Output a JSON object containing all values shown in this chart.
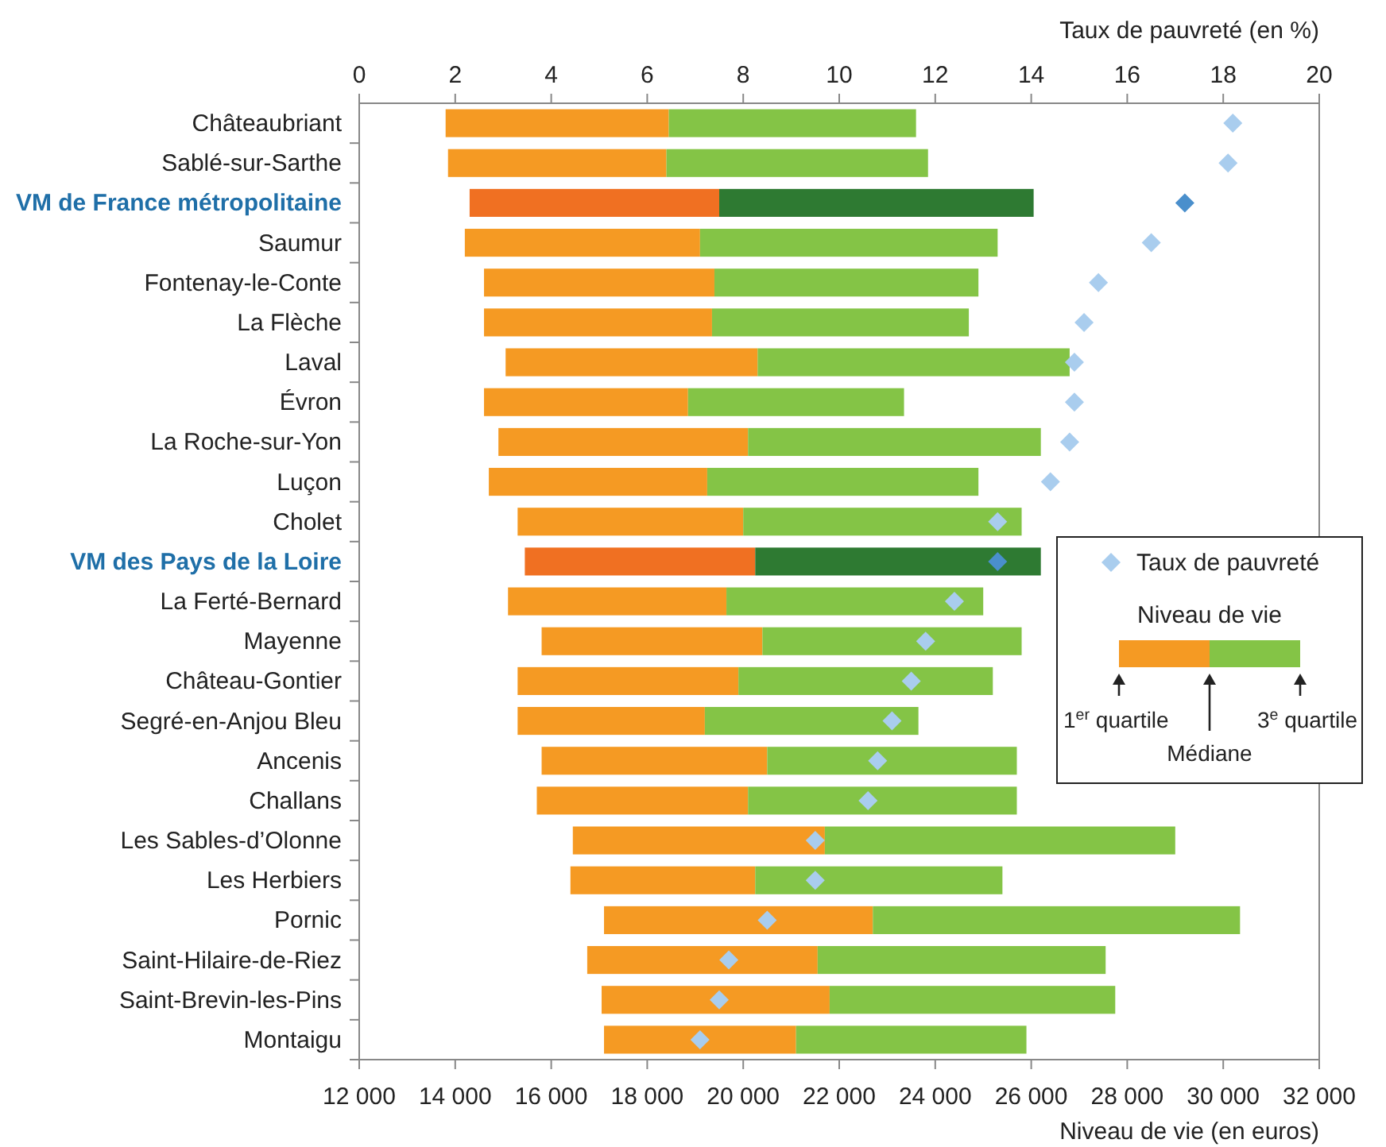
{
  "chart_data": {
    "type": "bar",
    "orientation": "horizontal",
    "categories": [
      "Châteaubriant",
      "Sablé-sur-Sarthe",
      "VM de France métropolitaine",
      "Saumur",
      "Fontenay-le-Conte",
      "La Flèche",
      "Laval",
      "Évron",
      "La Roche-sur-Yon",
      "Luçon",
      "Cholet",
      "VM des Pays de la Loire",
      "La Ferté-Bernard",
      "Mayenne",
      "Château-Gontier",
      "Segré-en-Anjou Bleu",
      "Ancenis",
      "Challans",
      "Les Sables-d’Olonne",
      "Les Herbiers",
      "Pornic",
      "Saint-Hilaire-de-Riez",
      "Saint-Brevin-les-Pins",
      "Montaigu"
    ],
    "series": [
      {
        "base": [
          13800,
          13850,
          14300,
          14200,
          14600,
          14600,
          15050,
          14600,
          14900,
          14700,
          15300,
          15450,
          15100,
          15800,
          15300,
          15300,
          15800,
          15700,
          16450,
          16400,
          17100,
          16750,
          17050,
          17100
        ],
        "color": "#f59a23",
        "colors": [
          "#f59a23",
          "#f59a23",
          "#f07022",
          "#f59a23",
          "#f59a23",
          "#f59a23",
          "#f59a23",
          "#f59a23",
          "#f59a23",
          "#f59a23",
          "#f59a23",
          "#f07022",
          "#f59a23",
          "#f59a23",
          "#f59a23",
          "#f59a23",
          "#f59a23",
          "#f59a23",
          "#f59a23",
          "#f59a23",
          "#f59a23",
          "#f59a23",
          "#f59a23",
          "#f59a23"
        ],
        "values": [
          4650,
          4550,
          5200,
          4900,
          4800,
          4750,
          5250,
          4250,
          5200,
          4550,
          4700,
          4800,
          4550,
          4600,
          4600,
          3900,
          4700,
          4400,
          5250,
          3850,
          5600,
          4800,
          4750,
          4000
        ]
      },
      {
        "base": [
          18450,
          18400,
          19500,
          19100,
          19400,
          19350,
          20300,
          18850,
          20100,
          19250,
          20000,
          20250,
          19650,
          20400,
          19900,
          19200,
          20500,
          20100,
          21700,
          20250,
          22700,
          21550,
          21800,
          21100
        ],
        "color": "#84c446",
        "colors": [
          "#84c446",
          "#84c446",
          "#2e7a32",
          "#84c446",
          "#84c446",
          "#84c446",
          "#84c446",
          "#84c446",
          "#84c446",
          "#84c446",
          "#84c446",
          "#2e7a32",
          "#84c446",
          "#84c446",
          "#84c446",
          "#84c446",
          "#84c446",
          "#84c446",
          "#84c446",
          "#84c446",
          "#84c446",
          "#84c446",
          "#84c446",
          "#84c446"
        ],
        "values": [
          5150,
          5450,
          6550,
          6200,
          5500,
          5350,
          6500,
          4500,
          6100,
          5650,
          5800,
          5950,
          5350,
          5400,
          5300,
          4450,
          5200,
          5600,
          7300,
          5150,
          7650,
          6000,
          5950,
          4800
        ]
      },
      {
        "type": "scatter",
        "name": "Taux de pauvreté",
        "axis": "x2",
        "marker": "diamond",
        "color": "#a9cdee",
        "colors": [
          "#a9cdee",
          "#a9cdee",
          "#4a8fcc",
          "#a9cdee",
          "#a9cdee",
          "#a9cdee",
          "#a9cdee",
          "#a9cdee",
          "#a9cdee",
          "#a9cdee",
          "#a9cdee",
          "#4a8fcc",
          "#a9cdee",
          "#a9cdee",
          "#a9cdee",
          "#a9cdee",
          "#a9cdee",
          "#a9cdee",
          "#a9cdee",
          "#a9cdee",
          "#a9cdee",
          "#a9cdee",
          "#a9cdee",
          "#a9cdee"
        ],
        "values": [
          18.2,
          18.1,
          17.2,
          16.5,
          15.4,
          15.1,
          14.9,
          14.9,
          14.8,
          14.4,
          13.3,
          13.3,
          12.4,
          11.8,
          11.5,
          11.1,
          10.8,
          10.6,
          9.5,
          9.5,
          8.5,
          7.7,
          7.5,
          7.1
        ]
      }
    ],
    "xlim": [
      12000,
      32000
    ],
    "xticks": [
      {
        "value": 12000,
        "label": "12 000"
      },
      {
        "value": 14000,
        "label": "14 000"
      },
      {
        "value": 16000,
        "label": "16 000"
      },
      {
        "value": 18000,
        "label": "18 000"
      },
      {
        "value": 20000,
        "label": "20 000"
      },
      {
        "value": 22000,
        "label": "22 000"
      },
      {
        "value": 24000,
        "label": "24 000"
      },
      {
        "value": 26000,
        "label": "26 000"
      },
      {
        "value": 28000,
        "label": "28 000"
      },
      {
        "value": 30000,
        "label": "30 000"
      },
      {
        "value": 32000,
        "label": "32 000"
      }
    ],
    "xlabel": "Niveau de vie (en euros)",
    "x2lim": [
      0,
      20
    ],
    "x2ticks": [
      0,
      2,
      4,
      6,
      8,
      10,
      12,
      14,
      16,
      18,
      20
    ],
    "x2label": "Taux de pauvreté (en %)",
    "legend": "right",
    "legend_title": "Niveau de vie",
    "annotations": [
      "1$^{er}$ quartile",
      "Médiane",
      "3$^{e}$ quartile"
    ]
  }
}
